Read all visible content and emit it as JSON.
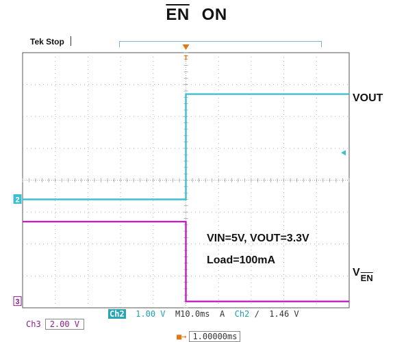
{
  "header": {
    "title_signal": "EN",
    "title_state": "ON",
    "scope_status": "Tek Stop"
  },
  "labels": {
    "vout": "VOUT",
    "ven_main": "V",
    "ven_sub": "EN",
    "conditions": "VIN=5V, VOUT=3.3V",
    "load": "Load=100mA"
  },
  "markers": {
    "trigger_top": "T",
    "ch2_marker": "2",
    "ch3_marker": "3"
  },
  "status": {
    "ch2_label": "Ch2",
    "ch2_scale": "1.00 V",
    "timebase": "M10.0ms",
    "trigger_mode": "A",
    "trigger_channel": "Ch2",
    "trigger_slope": "∂",
    "trigger_level": "1.46 V",
    "ch3_label": "Ch3",
    "ch3_scale": "2.00 V",
    "time_position": "1.00000ms"
  },
  "colors": {
    "ch2": "#3cc0d0",
    "ch3": "#c21ec2",
    "trigger": "#e07a10",
    "grid": "#9a9a9a"
  },
  "chart_data": {
    "type": "line",
    "grid": {
      "h_div": 10,
      "v_div": 8,
      "on": true
    },
    "x_unit": "ms",
    "xlim": [
      -50,
      50
    ],
    "series": [
      {
        "name": "VOUT",
        "channel": "Ch2",
        "scale_v_per_div": 1.0,
        "x": [
          -50,
          0,
          0,
          50
        ],
        "y": [
          0.0,
          0.0,
          3.3,
          3.3
        ]
      },
      {
        "name": "VEN",
        "channel": "Ch3",
        "scale_v_per_div": 2.0,
        "x": [
          -50,
          0,
          0,
          50
        ],
        "y": [
          5.0,
          5.0,
          0.0,
          0.0
        ]
      }
    ],
    "y_divisions": {
      "ch2_ground_div": 3.4,
      "ch3_ground_div": 0.2
    }
  }
}
